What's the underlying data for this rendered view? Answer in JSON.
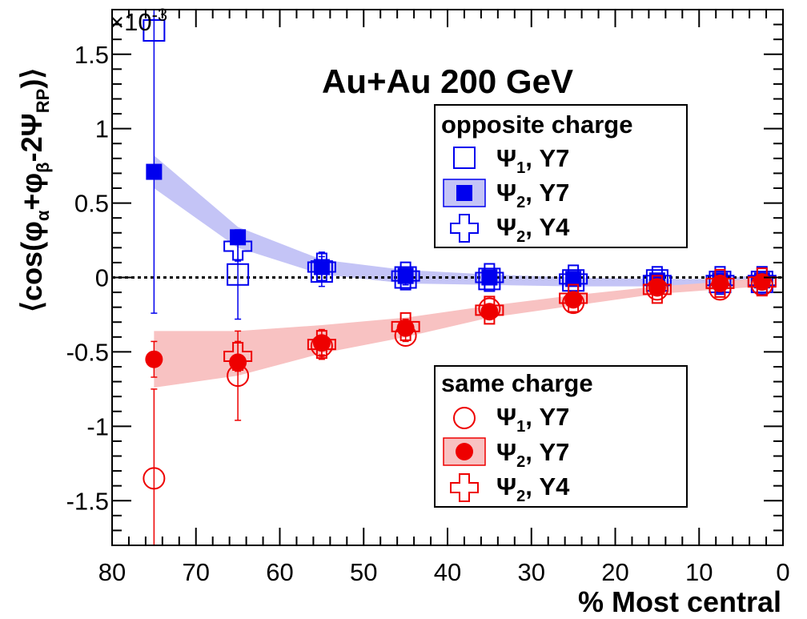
{
  "chart_data": {
    "type": "scatter",
    "title": "Au+Au 200 GeV",
    "xlabel": "% Most central",
    "ylabel": {
      "open": "⟨cos(",
      "phi1": "φ",
      "sub1": "α",
      "plus": "+",
      "phi2": "φ",
      "sub2": "β",
      "minus": "-2",
      "psi": "Ψ",
      "sub3": "RP",
      "close": ")⟩"
    },
    "exponent": {
      "base": "×10",
      "power": "-3"
    },
    "xlim": [
      80,
      0
    ],
    "ylim": [
      -1.8,
      1.8
    ],
    "x_ticks": [
      80,
      70,
      60,
      50,
      40,
      30,
      20,
      10,
      0
    ],
    "x_tick_labels": [
      "80",
      "70",
      "60",
      "50",
      "40",
      "30",
      "20",
      "10",
      "0"
    ],
    "y_ticks": [
      1.5,
      1,
      0.5,
      0,
      -0.5,
      -1,
      -1.5
    ],
    "y_tick_labels": [
      "1.5",
      "1",
      "0.5",
      "0",
      "-0.5",
      "-1",
      "-1.5"
    ],
    "colors": {
      "opposite": "#0000ee",
      "same": "#ee0000",
      "opposite_band": "#c4c4f6",
      "same_band": "#f8c2c2"
    },
    "series": [
      {
        "name": "opposite Psi1 Y7",
        "color": "#0000ee",
        "marker": "open-square",
        "x": [
          75,
          65,
          55,
          45,
          35,
          25,
          15,
          7.5,
          2.5
        ],
        "y": [
          1.66,
          0.02,
          0.04,
          0.0,
          -0.01,
          -0.02,
          -0.02,
          -0.03,
          -0.03
        ],
        "err": [
          1.9,
          0.3,
          0.1,
          0.05,
          0.03,
          0.02,
          0.02,
          0.02,
          0.02
        ]
      },
      {
        "name": "opposite Psi2 Y7",
        "color": "#0000ee",
        "marker": "filled-square",
        "x": [
          75,
          65,
          55,
          45,
          35,
          25,
          15,
          7.5,
          2.5
        ],
        "y": [
          0.71,
          0.27,
          0.07,
          0.01,
          0.0,
          -0.01,
          -0.02,
          -0.02,
          -0.02
        ],
        "err": [
          0,
          0,
          0,
          0,
          0,
          0,
          0,
          0,
          0
        ]
      },
      {
        "name": "opposite Psi2 Y4",
        "color": "#0000ee",
        "marker": "open-cross",
        "x": [
          75,
          65,
          55,
          45,
          35,
          25,
          15,
          7.5,
          2.5
        ],
        "y": [
          null,
          0.21,
          0.07,
          0.01,
          0.0,
          -0.01,
          -0.02,
          -0.02,
          -0.02
        ],
        "err": [
          0,
          0.1,
          0.1,
          0.05,
          0.04,
          0.03,
          0.03,
          0.04,
          0.05
        ]
      },
      {
        "name": "same Psi1 Y7",
        "color": "#ee0000",
        "marker": "open-circle",
        "x": [
          75,
          65,
          55,
          45,
          35,
          25,
          15,
          7.5,
          2.5
        ],
        "y": [
          -1.35,
          -0.66,
          -0.46,
          -0.39,
          -0.21,
          -0.17,
          -0.08,
          -0.08,
          -0.05
        ],
        "err": [
          0.6,
          0.3,
          0.06,
          0.04,
          0.03,
          0.02,
          0.02,
          0.02,
          0.02
        ]
      },
      {
        "name": "same Psi2 Y7",
        "color": "#ee0000",
        "marker": "filled-circle",
        "x": [
          75,
          65,
          55,
          45,
          35,
          25,
          15,
          7.5,
          2.5
        ],
        "y": [
          -0.55,
          -0.57,
          -0.44,
          -0.34,
          -0.23,
          -0.15,
          -0.07,
          -0.04,
          -0.03
        ],
        "err": [
          0.12,
          0,
          0,
          0,
          0,
          0,
          0,
          0,
          0
        ]
      },
      {
        "name": "same Psi2 Y4",
        "color": "#ee0000",
        "marker": "open-cross",
        "x": [
          75,
          65,
          55,
          45,
          35,
          25,
          15,
          7.5,
          2.5
        ],
        "y": [
          null,
          -0.53,
          -0.45,
          -0.33,
          -0.22,
          -0.14,
          -0.08,
          -0.04,
          -0.03
        ],
        "err": [
          0,
          0.1,
          0.1,
          0.05,
          0.04,
          0.03,
          0.03,
          0.04,
          0.05
        ]
      }
    ],
    "bands": [
      {
        "name": "opposite Psi2 Y7 band",
        "color": "#c4c4f6",
        "x": [
          75,
          65,
          55,
          45,
          35,
          25,
          15,
          7.5,
          2.5
        ],
        "upper": [
          0.82,
          0.34,
          0.12,
          0.05,
          0.02,
          0.0,
          -0.01,
          -0.01,
          0.02
        ],
        "lower": [
          0.6,
          0.2,
          0.02,
          -0.04,
          -0.05,
          -0.06,
          -0.06,
          -0.06,
          -0.07
        ]
      },
      {
        "name": "same Psi2 Y7 band",
        "color": "#f8c2c2",
        "x": [
          75,
          65,
          55,
          45,
          35,
          25,
          15,
          7.5,
          2.5
        ],
        "upper": [
          -0.36,
          -0.36,
          -0.32,
          -0.27,
          -0.19,
          -0.12,
          -0.06,
          -0.03,
          0.0
        ],
        "lower": [
          -0.74,
          -0.66,
          -0.51,
          -0.4,
          -0.27,
          -0.19,
          -0.11,
          -0.08,
          -0.06
        ]
      }
    ],
    "legends": [
      {
        "title": "opposite charge",
        "placement": "upper-right",
        "entries": [
          {
            "marker": "open-square",
            "color": "#0000ee",
            "psi": "Ψ",
            "sub": "1",
            "label": ", Y7"
          },
          {
            "marker": "filled-square-band",
            "color": "#0000ee",
            "psi": "Ψ",
            "sub": "2",
            "label": ", Y7"
          },
          {
            "marker": "open-cross",
            "color": "#0000ee",
            "psi": "Ψ",
            "sub": "2",
            "label": ", Y4"
          }
        ]
      },
      {
        "title": "same charge",
        "placement": "lower-right",
        "entries": [
          {
            "marker": "open-circle",
            "color": "#ee0000",
            "psi": "Ψ",
            "sub": "1",
            "label": ", Y7"
          },
          {
            "marker": "filled-circle-band",
            "color": "#ee0000",
            "psi": "Ψ",
            "sub": "2",
            "label": ", Y7"
          },
          {
            "marker": "open-cross",
            "color": "#ee0000",
            "psi": "Ψ",
            "sub": "2",
            "label": ", Y4"
          }
        ]
      }
    ]
  }
}
